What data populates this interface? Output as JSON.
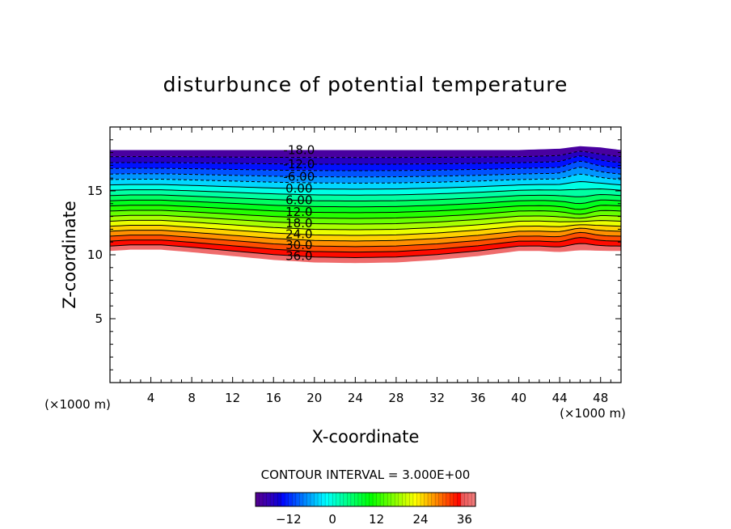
{
  "chart_data": {
    "type": "contour",
    "title": "disturbunce of potential temperature",
    "xlabel": "X-coordinate",
    "ylabel": "Z-coordinate",
    "x_unit": "(×1000 m)",
    "z_unit": "(×1000 m)",
    "xlim": [
      0,
      50
    ],
    "zlim": [
      0,
      20
    ],
    "x_ticks": [
      4,
      8,
      12,
      16,
      20,
      24,
      28,
      32,
      36,
      40,
      44,
      48
    ],
    "z_ticks": [
      5,
      10,
      15
    ],
    "contour_interval_label": "CONTOUR INTERVAL = 3.000E+00",
    "contour_interval": 3.0,
    "levels": [
      -18,
      -15,
      -12,
      -9,
      -6,
      -3,
      0,
      3,
      6,
      9,
      12,
      15,
      18,
      21,
      24,
      27,
      30,
      33,
      36,
      39
    ],
    "contour_labels": [
      {
        "text": "-18.0",
        "level": -18
      },
      {
        "text": "-12.0",
        "level": -12
      },
      {
        "text": "-6.00",
        "level": -6
      },
      {
        "text": "0.00",
        "level": 0
      },
      {
        "text": "6.00",
        "level": 6
      },
      {
        "text": "12.0",
        "level": 12
      },
      {
        "text": "18.0",
        "level": 18
      },
      {
        "text": "24.0",
        "level": 24
      },
      {
        "text": "30.0",
        "level": 30
      },
      {
        "text": "36.0",
        "level": 36
      }
    ],
    "field_top_profile": {
      "x": [
        0,
        10,
        20,
        30,
        40,
        44,
        46,
        48,
        50
      ],
      "z": [
        18.2,
        18.2,
        18.2,
        18.2,
        18.2,
        18.3,
        18.5,
        18.4,
        18.2
      ]
    },
    "field_bottom_profile": {
      "x": [
        0,
        2,
        5,
        8,
        12,
        16,
        20,
        24,
        28,
        32,
        36,
        40,
        42,
        44,
        46,
        48,
        50
      ],
      "z": [
        10.3,
        10.4,
        10.4,
        10.2,
        9.9,
        9.6,
        9.4,
        9.35,
        9.4,
        9.6,
        9.9,
        10.3,
        10.3,
        10.2,
        10.2,
        10.3,
        10.3
      ]
    },
    "colorbar": {
      "ticks": [
        -12,
        0,
        12,
        24,
        36
      ],
      "range": [
        -21,
        39
      ]
    }
  }
}
